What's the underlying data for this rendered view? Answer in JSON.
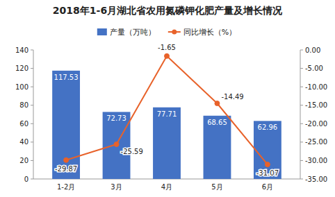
{
  "chart_data": {
    "type": "bar",
    "title": "2018年1-6月湖北省农用氮磷钾化肥产量及增长情况",
    "categories": [
      "1-2月",
      "3月",
      "4月",
      "5月",
      "6月"
    ],
    "series": [
      {
        "name": "产量（万吨）",
        "type": "bar",
        "color": "#4472C4",
        "values": [
          117.53,
          72.73,
          77.71,
          68.65,
          62.96
        ]
      },
      {
        "name": "同比增长（%）",
        "type": "line",
        "axis": "y2",
        "color": "#E8622A",
        "marker": "circle",
        "values": [
          -29.87,
          -25.59,
          -1.65,
          -14.49,
          -31.07
        ]
      }
    ],
    "ylim": [
      0,
      140
    ],
    "yticks": [
      0,
      20,
      40,
      60,
      80,
      100,
      120,
      140
    ],
    "y2lim": [
      -35,
      0
    ],
    "y2ticks": [
      {
        "value": 0,
        "label": "0.00"
      },
      {
        "value": -5,
        "label": "-5.00"
      },
      {
        "value": -10,
        "label": "-10.00"
      },
      {
        "value": -15,
        "label": "-15.00"
      },
      {
        "value": -20,
        "label": "-20.00"
      },
      {
        "value": -25,
        "label": "-25.00"
      },
      {
        "value": -30,
        "label": "-30.00"
      },
      {
        "value": -35,
        "label": "-35.00"
      }
    ],
    "grid": false,
    "legend": "top",
    "data_labels": true
  }
}
